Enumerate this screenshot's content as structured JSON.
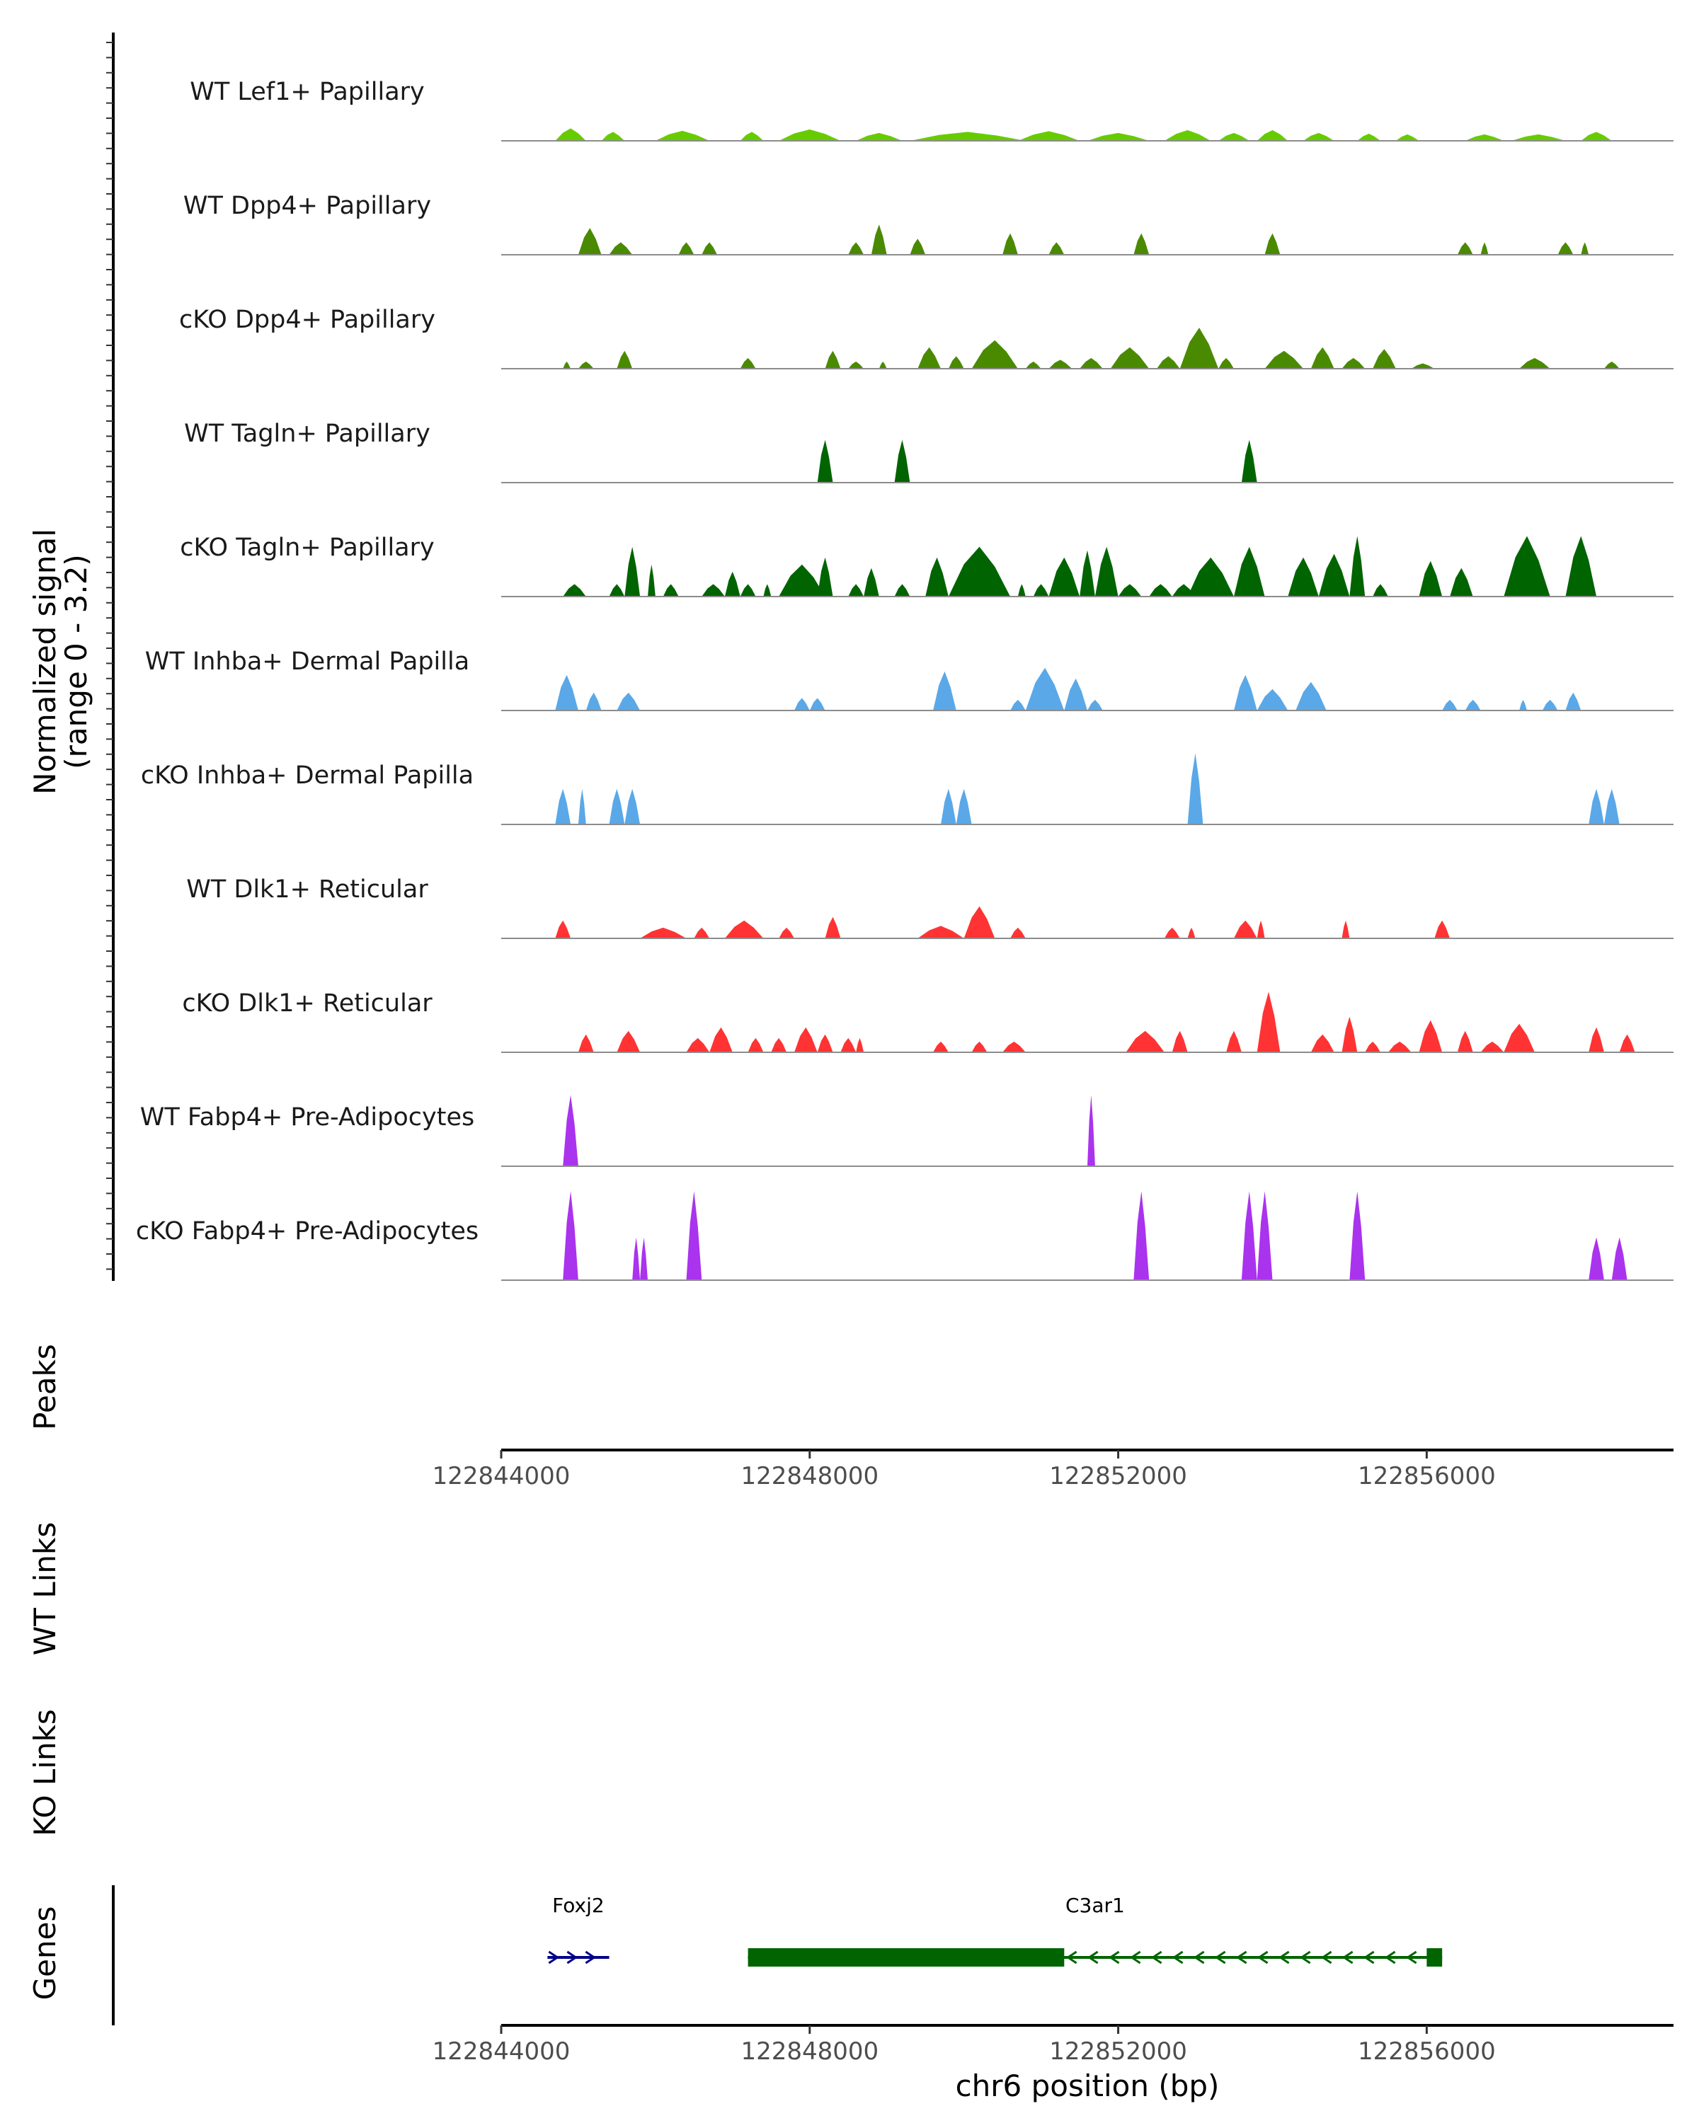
{
  "chart_data": {
    "type": "genome_coverage",
    "title": "",
    "y_axis_label": "Normalized signal",
    "y_axis_range_label": "(range 0 - 3.2)",
    "y_range": [
      0,
      3.2
    ],
    "x_range": [
      122844000,
      122859200
    ],
    "x_ticks": [
      122844000,
      122848000,
      122852000,
      122856000
    ],
    "x_tick_labels": [
      "122844000",
      "122848000",
      "122852000",
      "122856000"
    ],
    "xlabel": "chr6 position (bp)",
    "panel_labels": {
      "peaks": "Peaks",
      "wt_links": "WT Links",
      "ko_links": "KO Links",
      "genes": "Genes"
    },
    "tracks": [
      {
        "name": "WT Lef1+ Papillary",
        "color": "#66cc00",
        "regions": [
          [
            122844700,
            122845100,
            0.35
          ],
          [
            122845300,
            122845600,
            0.25
          ],
          [
            122846000,
            122846700,
            0.28
          ],
          [
            122847100,
            122847400,
            0.25
          ],
          [
            122847600,
            122848400,
            0.32
          ],
          [
            122848600,
            122849200,
            0.22
          ],
          [
            122849300,
            122850800,
            0.25
          ],
          [
            122850700,
            122851500,
            0.27
          ],
          [
            122851600,
            122852400,
            0.22
          ],
          [
            122852600,
            122853200,
            0.3
          ],
          [
            122853300,
            122853700,
            0.22
          ],
          [
            122853800,
            122854200,
            0.3
          ],
          [
            122854400,
            122854800,
            0.22
          ],
          [
            122855100,
            122855400,
            0.2
          ],
          [
            122855600,
            122855900,
            0.18
          ],
          [
            122856500,
            122857000,
            0.18
          ],
          [
            122857100,
            122857800,
            0.18
          ],
          [
            122858000,
            122858400,
            0.25
          ]
        ]
      },
      {
        "name": "WT Dpp4+ Papillary",
        "color": "#4a8a00",
        "regions": [
          [
            122845000,
            122845300,
            0.75
          ],
          [
            122845400,
            122845700,
            0.35
          ],
          [
            122846300,
            122846500,
            0.35
          ],
          [
            122846600,
            122846800,
            0.35
          ],
          [
            122848500,
            122848700,
            0.35
          ],
          [
            122848800,
            122849000,
            0.85
          ],
          [
            122849300,
            122849500,
            0.45
          ],
          [
            122850500,
            122850700,
            0.6
          ],
          [
            122851100,
            122851300,
            0.35
          ],
          [
            122852200,
            122852400,
            0.6
          ],
          [
            122853900,
            122854100,
            0.6
          ],
          [
            122856400,
            122856600,
            0.35
          ],
          [
            122856700,
            122856800,
            0.35
          ],
          [
            122857700,
            122857900,
            0.35
          ],
          [
            122858000,
            122858100,
            0.35
          ]
        ]
      },
      {
        "name": "cKO Dpp4+ Papillary",
        "color": "#4a8a00",
        "regions": [
          [
            122844800,
            122844900,
            0.2
          ],
          [
            122845000,
            122845200,
            0.2
          ],
          [
            122845500,
            122845700,
            0.5
          ],
          [
            122847100,
            122847300,
            0.3
          ],
          [
            122848200,
            122848400,
            0.5
          ],
          [
            122848500,
            122848700,
            0.2
          ],
          [
            122848900,
            122849000,
            0.2
          ],
          [
            122849400,
            122849700,
            0.6
          ],
          [
            122849800,
            122850000,
            0.35
          ],
          [
            122850100,
            122850700,
            0.8
          ],
          [
            122850800,
            122851000,
            0.2
          ],
          [
            122851100,
            122851400,
            0.25
          ],
          [
            122851500,
            122851800,
            0.3
          ],
          [
            122851900,
            122852400,
            0.6
          ],
          [
            122852500,
            122852800,
            0.35
          ],
          [
            122852800,
            122853300,
            1.15
          ],
          [
            122853300,
            122853500,
            0.3
          ],
          [
            122853900,
            122854400,
            0.5
          ],
          [
            122854500,
            122854800,
            0.6
          ],
          [
            122854900,
            122855200,
            0.3
          ],
          [
            122855300,
            122855600,
            0.55
          ],
          [
            122855800,
            122856100,
            0.15
          ],
          [
            122857200,
            122857600,
            0.3
          ],
          [
            122858300,
            122858500,
            0.2
          ]
        ]
      },
      {
        "name": "WT Tagln+ Papillary",
        "color": "#006400",
        "regions": [
          [
            122848100,
            122848300,
            1.2
          ],
          [
            122849100,
            122849300,
            1.2
          ],
          [
            122853600,
            122853800,
            1.2
          ]
        ]
      },
      {
        "name": "cKO Tagln+ Papillary",
        "color": "#006400",
        "regions": [
          [
            122844800,
            122845100,
            0.35
          ],
          [
            122845400,
            122845600,
            0.35
          ],
          [
            122845600,
            122845800,
            1.4
          ],
          [
            122845900,
            122846000,
            0.9
          ],
          [
            122846100,
            122846300,
            0.35
          ],
          [
            122846600,
            122846900,
            0.35
          ],
          [
            122846900,
            122847100,
            0.7
          ],
          [
            122847100,
            122847300,
            0.35
          ],
          [
            122847400,
            122847500,
            0.35
          ],
          [
            122847600,
            122848200,
            0.9
          ],
          [
            122848100,
            122848300,
            1.1
          ],
          [
            122848500,
            122848700,
            0.35
          ],
          [
            122848700,
            122848900,
            0.8
          ],
          [
            122849100,
            122849300,
            0.35
          ],
          [
            122849500,
            122849800,
            1.1
          ],
          [
            122849800,
            122850600,
            1.4
          ],
          [
            122850700,
            122850800,
            0.35
          ],
          [
            122850900,
            122851100,
            0.35
          ],
          [
            122851100,
            122851500,
            1.1
          ],
          [
            122851500,
            122851700,
            1.3
          ],
          [
            122851700,
            122852000,
            1.4
          ],
          [
            122852000,
            122852300,
            0.35
          ],
          [
            122852400,
            122852700,
            0.35
          ],
          [
            122852700,
            122853000,
            0.35
          ],
          [
            122852900,
            122853500,
            1.1
          ],
          [
            122853500,
            122853900,
            1.4
          ],
          [
            122854200,
            122854600,
            1.1
          ],
          [
            122854600,
            122855000,
            1.2
          ],
          [
            122855000,
            122855200,
            1.7
          ],
          [
            122855300,
            122855500,
            0.35
          ],
          [
            122855900,
            122856200,
            1.0
          ],
          [
            122856300,
            122856600,
            0.8
          ],
          [
            122857000,
            122857600,
            1.7
          ],
          [
            122857800,
            122858200,
            1.7
          ]
        ]
      },
      {
        "name": "WT Inhba+ Dermal Papilla",
        "color": "#5aa8e8",
        "regions": [
          [
            122844700,
            122845000,
            1.0
          ],
          [
            122845100,
            122845300,
            0.5
          ],
          [
            122845500,
            122845800,
            0.5
          ],
          [
            122847800,
            122848000,
            0.35
          ],
          [
            122848000,
            122848200,
            0.35
          ],
          [
            122849600,
            122849900,
            1.1
          ],
          [
            122850600,
            122850800,
            0.3
          ],
          [
            122850800,
            122851300,
            1.2
          ],
          [
            122851300,
            122851600,
            0.9
          ],
          [
            122851600,
            122851800,
            0.3
          ],
          [
            122853500,
            122853800,
            1.0
          ],
          [
            122853800,
            122854200,
            0.6
          ],
          [
            122854300,
            122854700,
            0.8
          ],
          [
            122856200,
            122856400,
            0.3
          ],
          [
            122856500,
            122856700,
            0.3
          ],
          [
            122857200,
            122857300,
            0.3
          ],
          [
            122857500,
            122857700,
            0.3
          ],
          [
            122857800,
            122858000,
            0.5
          ]
        ]
      },
      {
        "name": "cKO Inhba+ Dermal Papilla",
        "color": "#5aa8e8",
        "regions": [
          [
            122844700,
            122844900,
            1.0
          ],
          [
            122845000,
            122845100,
            1.0
          ],
          [
            122845400,
            122845600,
            1.0
          ],
          [
            122845600,
            122845800,
            1.0
          ],
          [
            122849700,
            122849900,
            1.0
          ],
          [
            122849900,
            122850100,
            1.0
          ],
          [
            122852900,
            122853100,
            2.0
          ],
          [
            122858100,
            122858300,
            1.0
          ],
          [
            122858300,
            122858500,
            1.0
          ]
        ]
      },
      {
        "name": "WT Dlk1+ Reticular",
        "color": "#ff3333",
        "regions": [
          [
            122844700,
            122844900,
            0.5
          ],
          [
            122845800,
            122846400,
            0.3
          ],
          [
            122846500,
            122846700,
            0.3
          ],
          [
            122846900,
            122847400,
            0.5
          ],
          [
            122847600,
            122847800,
            0.3
          ],
          [
            122848200,
            122848400,
            0.6
          ],
          [
            122849400,
            122850000,
            0.35
          ],
          [
            122850000,
            122850400,
            0.9
          ],
          [
            122850600,
            122850800,
            0.3
          ],
          [
            122852600,
            122852800,
            0.3
          ],
          [
            122852900,
            122853000,
            0.3
          ],
          [
            122853500,
            122853800,
            0.5
          ],
          [
            122853800,
            122853900,
            0.5
          ],
          [
            122854900,
            122855000,
            0.5
          ],
          [
            122856100,
            122856300,
            0.5
          ]
        ]
      },
      {
        "name": "cKO Dlk1+ Reticular",
        "color": "#ff3333",
        "regions": [
          [
            122845000,
            122845200,
            0.5
          ],
          [
            122845500,
            122845800,
            0.6
          ],
          [
            122846400,
            122846700,
            0.4
          ],
          [
            122846700,
            122847000,
            0.7
          ],
          [
            122847200,
            122847400,
            0.4
          ],
          [
            122847500,
            122847700,
            0.4
          ],
          [
            122847800,
            122848100,
            0.7
          ],
          [
            122848100,
            122848300,
            0.5
          ],
          [
            122848400,
            122848600,
            0.4
          ],
          [
            122848600,
            122848700,
            0.4
          ],
          [
            122849600,
            122849800,
            0.3
          ],
          [
            122850100,
            122850300,
            0.3
          ],
          [
            122850500,
            122850800,
            0.3
          ],
          [
            122852100,
            122852600,
            0.6
          ],
          [
            122852700,
            122852900,
            0.6
          ],
          [
            122853400,
            122853600,
            0.6
          ],
          [
            122853800,
            122854100,
            1.7
          ],
          [
            122854500,
            122854800,
            0.5
          ],
          [
            122854900,
            122855100,
            1.0
          ],
          [
            122855200,
            122855400,
            0.3
          ],
          [
            122855500,
            122855800,
            0.3
          ],
          [
            122855900,
            122856200,
            0.9
          ],
          [
            122856400,
            122856600,
            0.6
          ],
          [
            122856700,
            122857000,
            0.3
          ],
          [
            122857000,
            122857400,
            0.8
          ],
          [
            122858100,
            122858300,
            0.7
          ],
          [
            122858500,
            122858700,
            0.5
          ]
        ]
      },
      {
        "name": "WT Fabp4+ Pre-Adipocytes",
        "color": "#aa33ee",
        "regions": [
          [
            122844800,
            122845000,
            2.0
          ],
          [
            122851600,
            122851700,
            2.0
          ]
        ]
      },
      {
        "name": "cKO Fabp4+ Pre-Adipocytes",
        "color": "#aa33ee",
        "regions": [
          [
            122844800,
            122845000,
            2.5
          ],
          [
            122845700,
            122845800,
            1.2
          ],
          [
            122845800,
            122845900,
            1.2
          ],
          [
            122846400,
            122846600,
            2.5
          ],
          [
            122852200,
            122852400,
            2.5
          ],
          [
            122853600,
            122853800,
            2.5
          ],
          [
            122853800,
            122854000,
            2.5
          ],
          [
            122855000,
            122855200,
            2.5
          ],
          [
            122858100,
            122858300,
            1.2
          ],
          [
            122858400,
            122858600,
            1.2
          ]
        ]
      }
    ],
    "genes": [
      {
        "name": "Foxj2",
        "start": 122844600,
        "end": 122845400,
        "strand": "+",
        "color": "#000088",
        "exons": []
      },
      {
        "name": "C3ar1",
        "start": 122847200,
        "end": 122856200,
        "strand": "-",
        "color": "#006400",
        "exons": [
          [
            122847200,
            122851300
          ],
          [
            122856000,
            122856200
          ]
        ]
      }
    ]
  }
}
